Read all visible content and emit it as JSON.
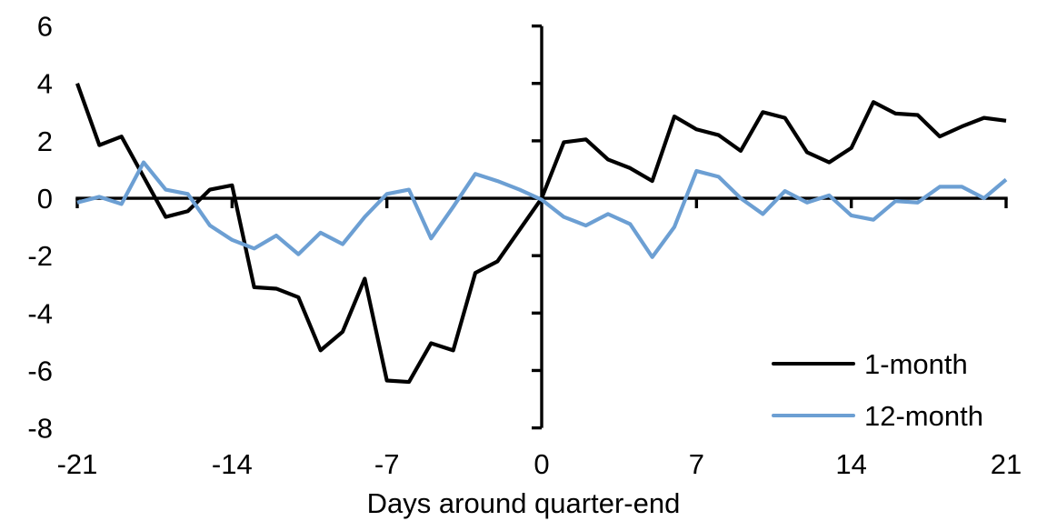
{
  "chart_data": {
    "type": "line",
    "title": "",
    "xlabel": "Days around quarter-end",
    "ylabel": "",
    "xlim": [
      -21,
      21
    ],
    "ylim": [
      -8,
      6
    ],
    "xticks": [
      -21,
      -14,
      -7,
      0,
      7,
      14,
      21
    ],
    "yticks": [
      6,
      4,
      2,
      0,
      -2,
      -4,
      -6,
      -8
    ],
    "grid": false,
    "legend_position": "inside-bottom-right",
    "axis_color": "#000000",
    "x": [
      -21,
      -20,
      -19,
      -18,
      -17,
      -16,
      -15,
      -14,
      -13,
      -12,
      -11,
      -10,
      -9,
      -8,
      -7,
      -6,
      -5,
      -4,
      -3,
      -2,
      -1,
      0,
      1,
      2,
      3,
      4,
      5,
      6,
      7,
      8,
      9,
      10,
      11,
      12,
      13,
      14,
      15,
      16,
      17,
      18,
      19,
      20,
      21
    ],
    "series": [
      {
        "name": "1-month",
        "color": "#000000",
        "values": [
          4.0,
          1.85,
          2.15,
          0.75,
          -0.65,
          -0.45,
          0.3,
          0.45,
          -3.1,
          -3.15,
          -3.45,
          -5.3,
          -4.65,
          -2.8,
          -6.35,
          -6.4,
          -5.05,
          -5.3,
          -2.6,
          -2.2,
          -1.1,
          0.0,
          1.95,
          2.05,
          1.35,
          1.05,
          0.6,
          2.85,
          2.4,
          2.2,
          1.65,
          3.0,
          2.8,
          1.6,
          1.25,
          1.75,
          3.35,
          2.95,
          2.9,
          2.15,
          2.5,
          2.8,
          2.7
        ]
      },
      {
        "name": "12-month",
        "color": "#6C9FD3",
        "values": [
          -0.15,
          0.05,
          -0.2,
          1.25,
          0.3,
          0.15,
          -0.95,
          -1.45,
          -1.75,
          -1.3,
          -1.95,
          -1.2,
          -1.6,
          -0.65,
          0.15,
          0.3,
          -1.4,
          -0.3,
          0.85,
          0.6,
          0.3,
          -0.05,
          -0.65,
          -0.95,
          -0.55,
          -0.9,
          -2.05,
          -1.0,
          0.95,
          0.75,
          0.0,
          -0.55,
          0.25,
          -0.15,
          0.1,
          -0.6,
          -0.75,
          -0.1,
          -0.15,
          0.4,
          0.4,
          0.0,
          0.65
        ]
      }
    ]
  }
}
